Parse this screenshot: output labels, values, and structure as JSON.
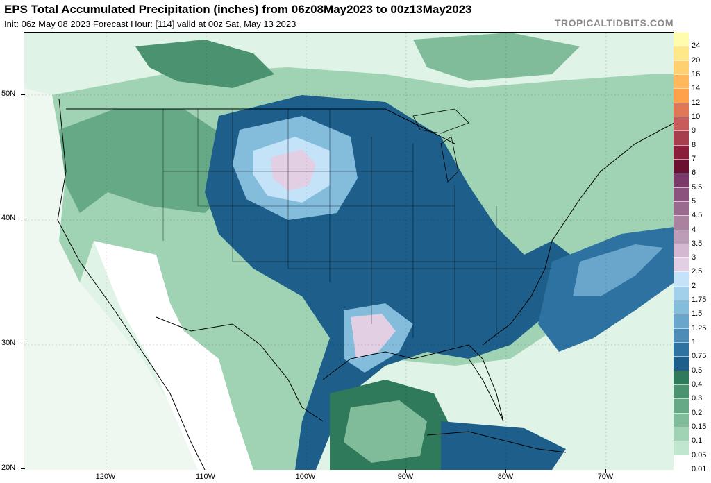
{
  "header": {
    "title": "EPS Total Accumulated Precipitation (inches) from 06z08May2023 to 00z13May2023",
    "subtitle": "Init: 06z May 08 2023   Forecast Hour: [114]   valid at 00z Sat, May 13 2023",
    "brand": "TROPICALTIDBITS.COM"
  },
  "map": {
    "lat_labels": [
      "50N",
      "40N",
      "30N",
      "20N"
    ],
    "lon_labels": [
      "120W",
      "110W",
      "100W",
      "90W",
      "80W",
      "70W"
    ],
    "ocean_color": "#ffffff",
    "land_color": "#dff3e6"
  },
  "colorbar": {
    "unit": "inches",
    "levels": [
      "24",
      "20",
      "16",
      "14",
      "12",
      "10",
      "9",
      "8",
      "7",
      "6",
      "5.5",
      "5",
      "4.5",
      "4",
      "3.5",
      "3",
      "2.5",
      "2",
      "1.75",
      "1.5",
      "1.25",
      "1",
      "0.75",
      "0.5",
      "0.4",
      "0.3",
      "0.2",
      "0.15",
      "0.1",
      "0.05",
      "0.01"
    ],
    "colors": [
      "#fffcae",
      "#ffe88a",
      "#ffd070",
      "#ffb85c",
      "#ffa04a",
      "#e07858",
      "#c85c5c",
      "#a63e4e",
      "#8b1e3a",
      "#6a1030",
      "#7a3a6a",
      "#8a527c",
      "#9a6a8e",
      "#aa82a0",
      "#bc9cb6",
      "#d4b8d2",
      "#e2cfe4",
      "#c4e2f8",
      "#a2d0ea",
      "#84bcdc",
      "#6aa6cc",
      "#4e8cb8",
      "#2e72a2",
      "#1d5f8a",
      "#2f7a5a",
      "#4a9270",
      "#66a986",
      "#80bc9a",
      "#a0d2b4",
      "#c0e6cf",
      "#ffffff"
    ]
  }
}
